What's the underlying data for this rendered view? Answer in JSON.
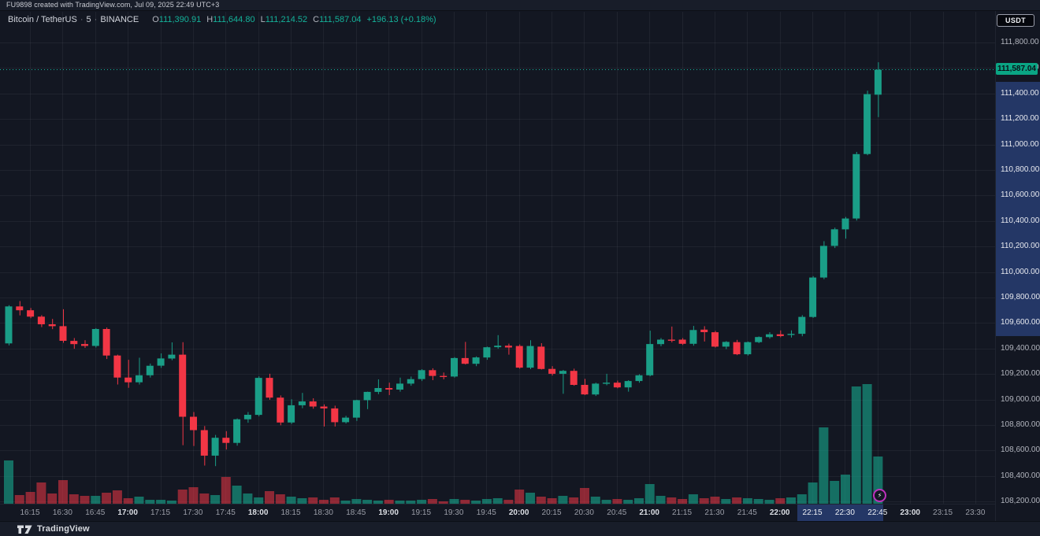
{
  "attribution": {
    "text": "FU9898 created with TradingView.com, Jul 09, 2025 22:49 UTC+3"
  },
  "symbol": {
    "title": "Bitcoin / TetherUS",
    "separator": "·",
    "interval": "5",
    "exchange": "BINANCE",
    "ohlc": {
      "o_label": "O",
      "o": "111,390.91",
      "h_label": "H",
      "h": "111,644.80",
      "l_label": "L",
      "l": "111,214.52",
      "c_label": "C",
      "c": "111,587.04",
      "change": "+196.13 (+0.18%)"
    }
  },
  "price_axis": {
    "currency_button": "USDT",
    "last_price_label": "111,587.04",
    "ticks": [
      {
        "value": 111800,
        "label": "111,800.00"
      },
      {
        "value": 111600,
        "label": "111,600.00"
      },
      {
        "value": 111400,
        "label": "111,400.00"
      },
      {
        "value": 111200,
        "label": "111,200.00"
      },
      {
        "value": 111000,
        "label": "111,000.00"
      },
      {
        "value": 110800,
        "label": "110,800.00"
      },
      {
        "value": 110600,
        "label": "110,600.00"
      },
      {
        "value": 110400,
        "label": "110,400.00"
      },
      {
        "value": 110200,
        "label": "110,200.00"
      },
      {
        "value": 110000,
        "label": "110,000.00"
      },
      {
        "value": 109800,
        "label": "109,800.00"
      },
      {
        "value": 109600,
        "label": "109,600.00"
      },
      {
        "value": 109400,
        "label": "109,400.00"
      },
      {
        "value": 109200,
        "label": "109,200.00"
      },
      {
        "value": 109000,
        "label": "109,000.00"
      },
      {
        "value": 108800,
        "label": "108,800.00"
      },
      {
        "value": 108600,
        "label": "108,600.00"
      },
      {
        "value": 108400,
        "label": "108,400.00"
      },
      {
        "value": 108200,
        "label": "108,200.00"
      }
    ]
  },
  "time_axis": {
    "ticks": [
      {
        "label": "16:15",
        "strong": false,
        "highlighted": false
      },
      {
        "label": "16:30",
        "strong": false,
        "highlighted": false
      },
      {
        "label": "16:45",
        "strong": false,
        "highlighted": false
      },
      {
        "label": "17:00",
        "strong": true,
        "highlighted": false
      },
      {
        "label": "17:15",
        "strong": false,
        "highlighted": false
      },
      {
        "label": "17:30",
        "strong": false,
        "highlighted": false
      },
      {
        "label": "17:45",
        "strong": false,
        "highlighted": false
      },
      {
        "label": "18:00",
        "strong": true,
        "highlighted": false
      },
      {
        "label": "18:15",
        "strong": false,
        "highlighted": false
      },
      {
        "label": "18:30",
        "strong": false,
        "highlighted": false
      },
      {
        "label": "18:45",
        "strong": false,
        "highlighted": false
      },
      {
        "label": "19:00",
        "strong": true,
        "highlighted": false
      },
      {
        "label": "19:15",
        "strong": false,
        "highlighted": false
      },
      {
        "label": "19:30",
        "strong": false,
        "highlighted": false
      },
      {
        "label": "19:45",
        "strong": false,
        "highlighted": false
      },
      {
        "label": "20:00",
        "strong": true,
        "highlighted": false
      },
      {
        "label": "20:15",
        "strong": false,
        "highlighted": false
      },
      {
        "label": "20:30",
        "strong": false,
        "highlighted": false
      },
      {
        "label": "20:45",
        "strong": false,
        "highlighted": false
      },
      {
        "label": "21:00",
        "strong": true,
        "highlighted": false
      },
      {
        "label": "21:15",
        "strong": false,
        "highlighted": false
      },
      {
        "label": "21:30",
        "strong": false,
        "highlighted": false
      },
      {
        "label": "21:45",
        "strong": false,
        "highlighted": false
      },
      {
        "label": "22:00",
        "strong": true,
        "highlighted": false
      },
      {
        "label": "22:15",
        "strong": false,
        "highlighted": true
      },
      {
        "label": "22:30",
        "strong": false,
        "highlighted": true
      },
      {
        "label": "22:45",
        "strong": false,
        "highlighted": true
      },
      {
        "label": "23:00",
        "strong": true,
        "highlighted": false
      },
      {
        "label": "23:15",
        "strong": false,
        "highlighted": false
      },
      {
        "label": "23:30",
        "strong": false,
        "highlighted": false
      }
    ]
  },
  "footer": {
    "brand": "TradingView"
  },
  "colors": {
    "background": "#131722",
    "panel": "#181d29",
    "grid": "rgba(178,181,190,0.08)",
    "up": "#1a9e87",
    "down": "#f23645",
    "volume_up": "rgba(23,158,135,0.65)",
    "volume_down": "rgba(242,54,69,0.55)",
    "text_up": "#14b29a",
    "text_primary": "#d1d4dc",
    "text_secondary": "#b2b5be",
    "axis_highlight": "rgba(66,107,212,0.38)",
    "last_price_bg": "#0aa584",
    "price_line": "#14b29a",
    "badge_ring": "#bf31bd"
  },
  "chart_data": {
    "type": "candlestick",
    "title": "Bitcoin / TetherUS · 5 · BINANCE",
    "interval_minutes": 5,
    "exchange": "BINANCE",
    "quote_currency": "USDT",
    "last_price": 111587.04,
    "session_low": 108478,
    "session_high": 111644.8,
    "price_axis_range": [
      108100,
      112050
    ],
    "time_axis_range": [
      "16:05",
      "23:30"
    ],
    "grid": true,
    "legend_position": "top-left",
    "columns": [
      "time",
      "open",
      "high",
      "low",
      "close",
      "volume_rel"
    ],
    "candles": [
      [
        "16:05",
        109440,
        109740,
        109425,
        109730,
        55
      ],
      [
        "16:10",
        109730,
        109772,
        109660,
        109700,
        11
      ],
      [
        "16:15",
        109700,
        109718,
        109638,
        109650,
        15
      ],
      [
        "16:20",
        109650,
        109662,
        109568,
        109590,
        27
      ],
      [
        "16:25",
        109590,
        109632,
        109552,
        109575,
        13
      ],
      [
        "16:30",
        109575,
        109708,
        109445,
        109460,
        30
      ],
      [
        "16:35",
        109460,
        109482,
        109398,
        109435,
        12
      ],
      [
        "16:40",
        109435,
        109465,
        109405,
        109420,
        10
      ],
      [
        "16:45",
        109420,
        109560,
        109408,
        109553,
        10
      ],
      [
        "16:50",
        109553,
        109565,
        109318,
        109345,
        14
      ],
      [
        "16:55",
        109345,
        109352,
        109118,
        109172,
        17
      ],
      [
        "17:00",
        109172,
        109312,
        109092,
        109135,
        7
      ],
      [
        "17:05",
        109135,
        109328,
        109118,
        109190,
        9
      ],
      [
        "17:10",
        109190,
        109282,
        109172,
        109265,
        5
      ],
      [
        "17:15",
        109265,
        109362,
        109248,
        109322,
        5
      ],
      [
        "17:20",
        109322,
        109448,
        109308,
        109352,
        4
      ],
      [
        "17:25",
        109352,
        109450,
        108642,
        108865,
        18
      ],
      [
        "17:30",
        108865,
        108902,
        108636,
        108760,
        21
      ],
      [
        "17:35",
        108760,
        108792,
        108482,
        108560,
        13
      ],
      [
        "17:40",
        108560,
        108722,
        108478,
        108700,
        11
      ],
      [
        "17:45",
        108700,
        108752,
        108608,
        108660,
        34
      ],
      [
        "17:50",
        108660,
        108852,
        108638,
        108845,
        23
      ],
      [
        "17:55",
        108845,
        108902,
        108818,
        108880,
        13
      ],
      [
        "18:00",
        108880,
        109182,
        108868,
        109170,
        8
      ],
      [
        "18:05",
        109170,
        109202,
        108998,
        109015,
        16
      ],
      [
        "18:10",
        109015,
        109032,
        108798,
        108820,
        12
      ],
      [
        "18:15",
        108820,
        109002,
        108808,
        108955,
        9
      ],
      [
        "18:20",
        108955,
        109052,
        108932,
        108985,
        7
      ],
      [
        "18:25",
        108985,
        109010,
        108928,
        108945,
        8
      ],
      [
        "18:30",
        108945,
        108962,
        108788,
        108930,
        5
      ],
      [
        "18:35",
        108930,
        108952,
        108788,
        108822,
        8
      ],
      [
        "18:40",
        108822,
        108872,
        108812,
        108858,
        4
      ],
      [
        "18:45",
        108858,
        108998,
        108832,
        108995,
        6
      ],
      [
        "18:50",
        108995,
        109062,
        108925,
        109060,
        5
      ],
      [
        "18:55",
        109060,
        109158,
        109042,
        109090,
        4
      ],
      [
        "19:00",
        109090,
        109132,
        109035,
        109078,
        5
      ],
      [
        "19:05",
        109078,
        109172,
        109062,
        109125,
        4
      ],
      [
        "19:10",
        109125,
        109180,
        109108,
        109160,
        4
      ],
      [
        "19:15",
        109160,
        109238,
        109145,
        109230,
        5
      ],
      [
        "19:20",
        109230,
        109245,
        109152,
        109185,
        6
      ],
      [
        "19:25",
        109185,
        109212,
        109158,
        109180,
        3
      ],
      [
        "19:30",
        109180,
        109332,
        109172,
        109325,
        6
      ],
      [
        "19:35",
        109325,
        109452,
        109275,
        109280,
        5
      ],
      [
        "19:40",
        109280,
        109338,
        109262,
        109330,
        4
      ],
      [
        "19:45",
        109330,
        109415,
        109312,
        109410,
        6
      ],
      [
        "19:50",
        109410,
        109505,
        109398,
        109422,
        7
      ],
      [
        "19:55",
        109422,
        109438,
        109352,
        109408,
        5
      ],
      [
        "20:00",
        109420,
        109432,
        109242,
        109250,
        18
      ],
      [
        "20:05",
        109250,
        109465,
        109238,
        109420,
        14
      ],
      [
        "20:10",
        109415,
        109442,
        109235,
        109240,
        9
      ],
      [
        "20:15",
        109240,
        109262,
        109188,
        109202,
        7
      ],
      [
        "20:20",
        109202,
        109232,
        109045,
        109225,
        10
      ],
      [
        "20:25",
        109225,
        109242,
        109108,
        109115,
        8
      ],
      [
        "20:30",
        109115,
        109162,
        109035,
        109040,
        20
      ],
      [
        "20:35",
        109040,
        109132,
        109028,
        109125,
        9
      ],
      [
        "20:40",
        109125,
        109202,
        109112,
        109132,
        5
      ],
      [
        "20:45",
        109132,
        109148,
        109088,
        109095,
        6
      ],
      [
        "20:50",
        109095,
        109152,
        109062,
        109145,
        5
      ],
      [
        "20:55",
        109145,
        109198,
        109132,
        109190,
        7
      ],
      [
        "21:00",
        109190,
        109540,
        109182,
        109435,
        25
      ],
      [
        "21:05",
        109435,
        109482,
        109418,
        109470,
        10
      ],
      [
        "21:10",
        109470,
        109572,
        109448,
        109465,
        8
      ],
      [
        "21:15",
        109470,
        109482,
        109428,
        109437,
        6
      ],
      [
        "21:20",
        109437,
        109577,
        109422,
        109545,
        12
      ],
      [
        "21:25",
        109548,
        109575,
        109455,
        109528,
        7
      ],
      [
        "21:30",
        109528,
        109538,
        109408,
        109415,
        9
      ],
      [
        "21:35",
        109415,
        109458,
        109395,
        109452,
        6
      ],
      [
        "21:40",
        109450,
        109468,
        109348,
        109355,
        8
      ],
      [
        "21:45",
        109355,
        109455,
        109345,
        109450,
        7
      ],
      [
        "21:50",
        109450,
        109495,
        109442,
        109490,
        6
      ],
      [
        "21:55",
        109490,
        109528,
        109478,
        109512,
        5
      ],
      [
        "22:00",
        109512,
        109542,
        109488,
        109498,
        7
      ],
      [
        "22:05",
        109512,
        109542,
        109486,
        109515,
        8
      ],
      [
        "22:10",
        109515,
        109662,
        109496,
        109648,
        12
      ],
      [
        "22:15",
        109648,
        109968,
        109640,
        109957,
        27
      ],
      [
        "22:20",
        109957,
        110242,
        109944,
        110205,
        97
      ],
      [
        "22:25",
        110205,
        110348,
        110188,
        110335,
        29
      ],
      [
        "22:30",
        110335,
        110432,
        110262,
        110420,
        37
      ],
      [
        "22:35",
        110420,
        110942,
        110404,
        110925,
        149
      ],
      [
        "22:40",
        110925,
        111422,
        110916,
        111395,
        152
      ],
      [
        "22:45",
        111390.91,
        111644.8,
        111214.52,
        111587.04,
        60
      ]
    ]
  }
}
